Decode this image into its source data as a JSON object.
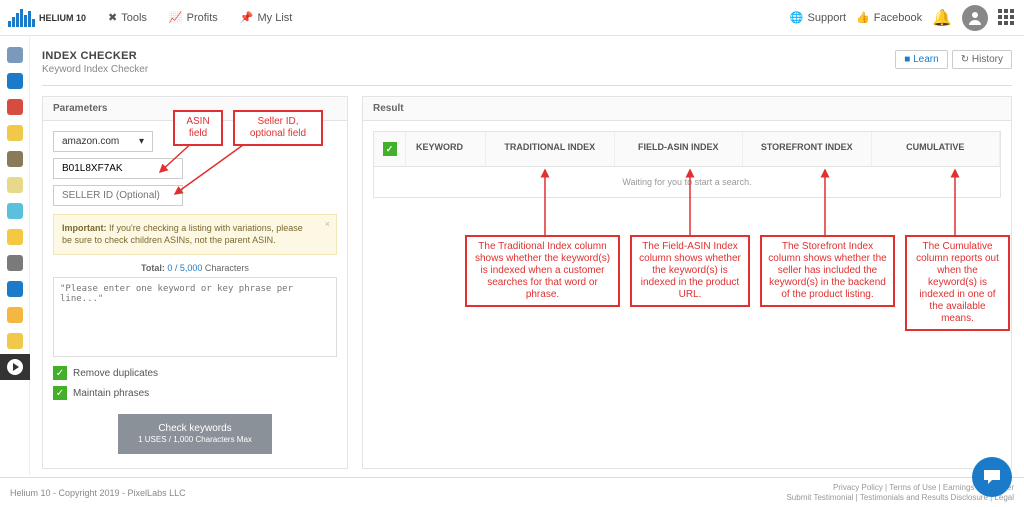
{
  "logo_text": "HELIUM 10",
  "top_nav": {
    "tools": "Tools",
    "profits": "Profits",
    "mylist": "My List"
  },
  "top_right": {
    "support": "Support",
    "facebook": "Facebook"
  },
  "page": {
    "title": "INDEX CHECKER",
    "subtitle": "Keyword Index Checker"
  },
  "header_buttons": {
    "learn": "Learn",
    "history": "History"
  },
  "panel_left_title": "Parameters",
  "panel_right_title": "Result",
  "marketplace": "amazon.com",
  "asin_value": "B01L8XF7AK",
  "seller_placeholder": "SELLER ID (Optional)",
  "alert": {
    "prefix": "Important:",
    "text": " If you're checking a listing with variations, please be sure to check children ASINs, not the parent ASIN."
  },
  "total": {
    "label": "Total: ",
    "count": "0 / 5,000",
    "suffix": " Characters"
  },
  "keywords_placeholder": "\"Please enter one keyword or key phrase per line...\"",
  "checkboxes": {
    "remove_dup": "Remove duplicates",
    "maintain": "Maintain phrases"
  },
  "check_btn": {
    "main": "Check keywords",
    "sub": "1 USES / 1,000 Characters Max"
  },
  "result_cols": {
    "keyword": "KEYWORD",
    "traditional": "TRADITIONAL INDEX",
    "field_asin": "FIELD-ASIN INDEX",
    "storefront": "STOREFRONT INDEX",
    "cumulative": "CUMULATIVE"
  },
  "waiting": "Waiting for you to start a search.",
  "annotations": {
    "asin": "ASIN\nfield",
    "seller": "Seller ID,\noptional field",
    "traditional": "The Traditional Index column shows whether the keyword(s) is indexed when a customer searches for that word or phrase.",
    "field_asin": "The Field-ASIN Index column shows whether the keyword(s) is indexed in the product URL.",
    "storefront": "The Storefront Index column shows whether the seller has included the keyword(s) in the backend of the product listing.",
    "cumulative": "The Cumulative column reports out when the keyword(s) is indexed in one of the available means."
  },
  "footer": {
    "copyright": "Helium 10 - Copyright 2019 - PixelLabs LLC",
    "links": "Privacy Policy | Terms of Use | Earnings Disclaimer",
    "sub": "Submit Testimonial | Testimonials and Results Disclosure | Legal"
  },
  "colors": {
    "accent_blue": "#1b7bc8",
    "annotation_red": "#e03030",
    "green": "#43b02a",
    "warn_bg": "#fdf8e4"
  },
  "sidebar_icons": [
    {
      "c": "#7a99bb"
    },
    {
      "c": "#1b7bc8"
    },
    {
      "c": "#d84b3f"
    },
    {
      "c": "#f0c94a"
    },
    {
      "c": "#8a7a5a"
    },
    {
      "c": "#e8d98a"
    },
    {
      "c": "#5bc0de"
    },
    {
      "c": "#f5c842"
    },
    {
      "c": "#7a7a7a"
    },
    {
      "c": "#1b7bc8"
    },
    {
      "c": "#f5b642"
    },
    {
      "c": "#f0c94a"
    },
    {
      "c": "#333333",
      "active": true
    }
  ]
}
